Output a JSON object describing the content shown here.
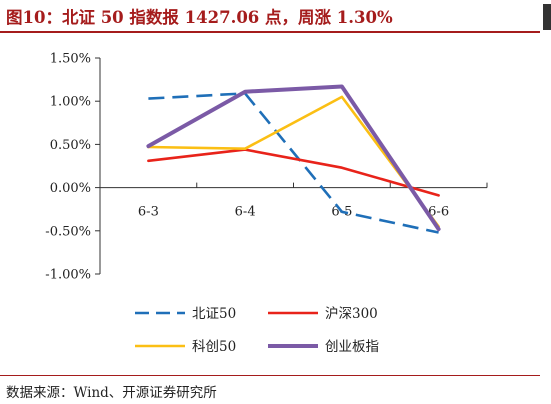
{
  "header": {
    "title": "图10：北证 50 指数报 1427.06 点，周涨 1.30%"
  },
  "footer": {
    "source": "数据来源：Wind、开源证券研究所"
  },
  "chart_data": {
    "type": "line",
    "categories": [
      "6-3",
      "6-4",
      "6-5",
      "6-6"
    ],
    "ylim": [
      -0.01,
      0.015
    ],
    "ytick_values": [
      -0.01,
      -0.005,
      0,
      0.005,
      0.01,
      0.015
    ],
    "ytick_labels": [
      "-1.00%",
      "-0.50%",
      "0.00%",
      "0.50%",
      "1.00%",
      "1.50%"
    ],
    "grid": false,
    "legend_position": "bottom",
    "series": [
      {
        "name": "北证50",
        "color": "#1f6fb8",
        "dash": true,
        "values": [
          0.0103,
          0.0109,
          -0.0028,
          -0.0052
        ]
      },
      {
        "name": "沪深300",
        "color": "#e8231a",
        "dash": false,
        "values": [
          0.0031,
          0.0044,
          0.0023,
          -0.0009
        ]
      },
      {
        "name": "科创50",
        "color": "#fbbf14",
        "dash": false,
        "values": [
          0.0047,
          0.0045,
          0.0105,
          -0.0045
        ]
      },
      {
        "name": "创业板指",
        "color": "#7b5aa6",
        "dash": false,
        "values": [
          0.0048,
          0.0111,
          0.0117,
          -0.0048
        ]
      }
    ]
  }
}
